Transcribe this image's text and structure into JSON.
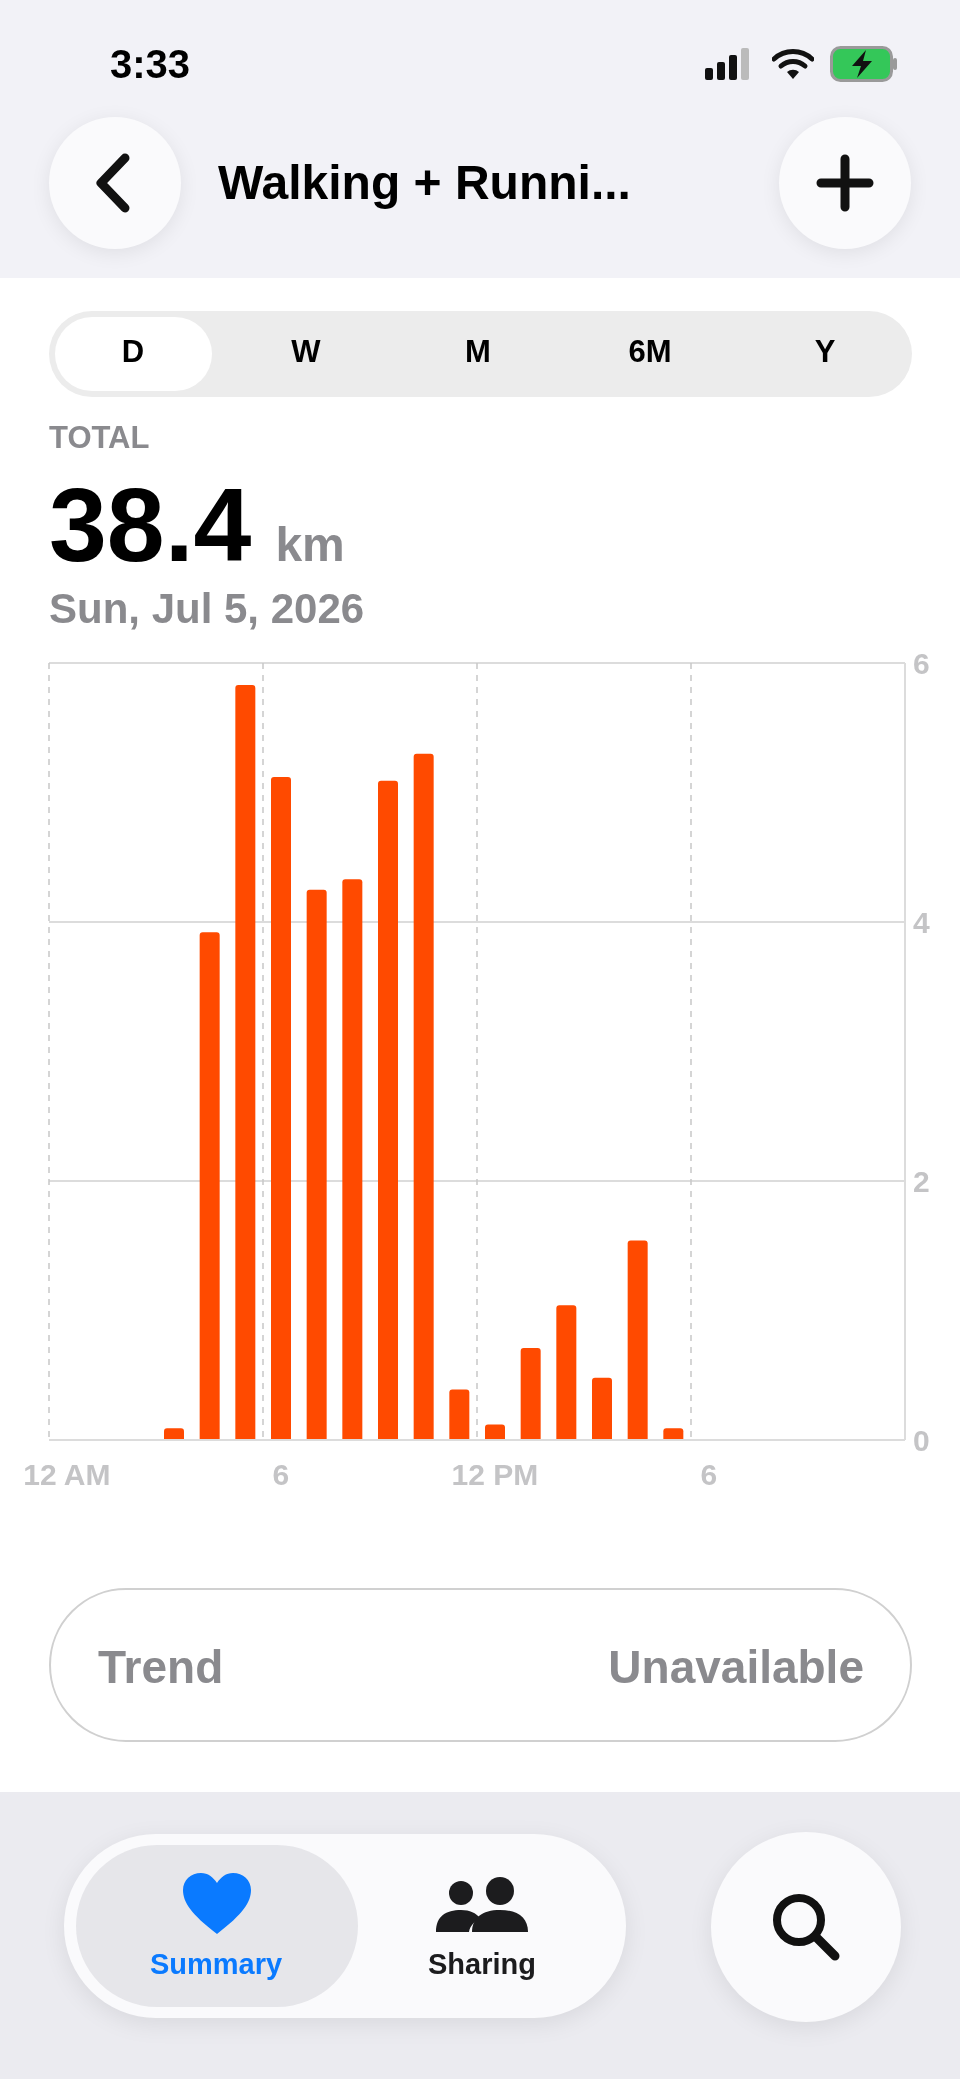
{
  "chart_data": {
    "type": "bar",
    "title": "Walking + Runni...",
    "subtitle": "Sun, Jul 5, 2026",
    "categories": [
      "12 AM",
      null,
      null,
      null,
      null,
      null,
      "6",
      null,
      null,
      null,
      null,
      null,
      "12 PM",
      null,
      null,
      null,
      null,
      null,
      "6",
      null,
      null,
      null,
      null,
      null
    ],
    "values": [
      null,
      null,
      null,
      0.09,
      3.92,
      5.83,
      5.12,
      4.25,
      4.33,
      5.09,
      5.3,
      0.39,
      0.12,
      0.71,
      1.04,
      0.48,
      1.54,
      0.09,
      null,
      null,
      null,
      null,
      null,
      null
    ],
    "color": "#ff4a00",
    "ylim": [
      0,
      6
    ],
    "yticks": [
      0,
      2,
      4,
      6
    ],
    "grid": true,
    "annotations": [
      "3:33",
      "D",
      "W",
      "M",
      "6M",
      "Y",
      "TOTAL",
      "38.4",
      "km",
      "Trend",
      "Unavailable",
      "Summary",
      "Sharing"
    ]
  }
}
